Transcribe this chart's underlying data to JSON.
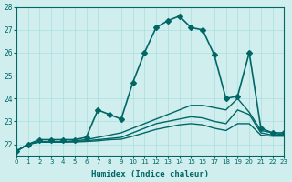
{
  "xlabel": "Humidex (Indice chaleur)",
  "ylabel": "",
  "background_color": "#d0eeee",
  "grid_color": "#aadddd",
  "line_color": "#006666",
  "xlim": [
    0,
    23
  ],
  "ylim": [
    21.5,
    28
  ],
  "yticks": [
    22,
    23,
    24,
    25,
    26,
    27,
    28
  ],
  "xticks": [
    0,
    1,
    2,
    3,
    4,
    5,
    6,
    7,
    8,
    9,
    10,
    11,
    12,
    13,
    14,
    15,
    16,
    17,
    18,
    19,
    20,
    21,
    22,
    23
  ],
  "series": [
    {
      "x": [
        0,
        1,
        2,
        3,
        4,
        5,
        6,
        7,
        8,
        9,
        10,
        11,
        12,
        13,
        14,
        15,
        16,
        17,
        18,
        19,
        20,
        21,
        22,
        23
      ],
      "y": [
        21.7,
        22.0,
        22.2,
        22.2,
        22.2,
        22.2,
        22.3,
        23.5,
        23.3,
        23.1,
        24.7,
        26.0,
        27.1,
        27.4,
        27.6,
        27.1,
        27.0,
        25.9,
        24.0,
        24.1,
        26.0,
        22.7,
        22.5,
        22.5
      ],
      "marker": "D",
      "markersize": 3,
      "linewidth": 1.2
    },
    {
      "x": [
        0,
        1,
        2,
        3,
        4,
        5,
        6,
        7,
        8,
        9,
        10,
        11,
        12,
        13,
        14,
        15,
        16,
        17,
        18,
        19,
        20,
        21,
        22,
        23
      ],
      "y": [
        21.7,
        22.0,
        22.1,
        22.1,
        22.1,
        22.15,
        22.2,
        22.3,
        22.4,
        22.5,
        22.7,
        22.9,
        23.1,
        23.3,
        23.5,
        23.7,
        23.7,
        23.6,
        23.5,
        24.0,
        23.4,
        22.6,
        22.5,
        22.4
      ],
      "marker": null,
      "markersize": 0,
      "linewidth": 1.0
    },
    {
      "x": [
        0,
        1,
        2,
        3,
        4,
        5,
        6,
        7,
        8,
        9,
        10,
        11,
        12,
        13,
        14,
        15,
        16,
        17,
        18,
        19,
        20,
        21,
        22,
        23
      ],
      "y": [
        21.7,
        22.0,
        22.1,
        22.1,
        22.1,
        22.12,
        22.15,
        22.2,
        22.25,
        22.3,
        22.5,
        22.7,
        22.9,
        23.0,
        23.1,
        23.2,
        23.15,
        23.0,
        22.9,
        23.5,
        23.3,
        22.5,
        22.4,
        22.4
      ],
      "marker": null,
      "markersize": 0,
      "linewidth": 1.0
    },
    {
      "x": [
        0,
        1,
        2,
        3,
        4,
        5,
        6,
        7,
        8,
        9,
        10,
        11,
        12,
        13,
        14,
        15,
        16,
        17,
        18,
        19,
        20,
        21,
        22,
        23
      ],
      "y": [
        21.7,
        22.0,
        22.1,
        22.1,
        22.1,
        22.1,
        22.12,
        22.15,
        22.2,
        22.22,
        22.35,
        22.5,
        22.65,
        22.75,
        22.85,
        22.9,
        22.85,
        22.7,
        22.6,
        22.9,
        22.9,
        22.4,
        22.35,
        22.35
      ],
      "marker": null,
      "markersize": 0,
      "linewidth": 1.0
    }
  ]
}
